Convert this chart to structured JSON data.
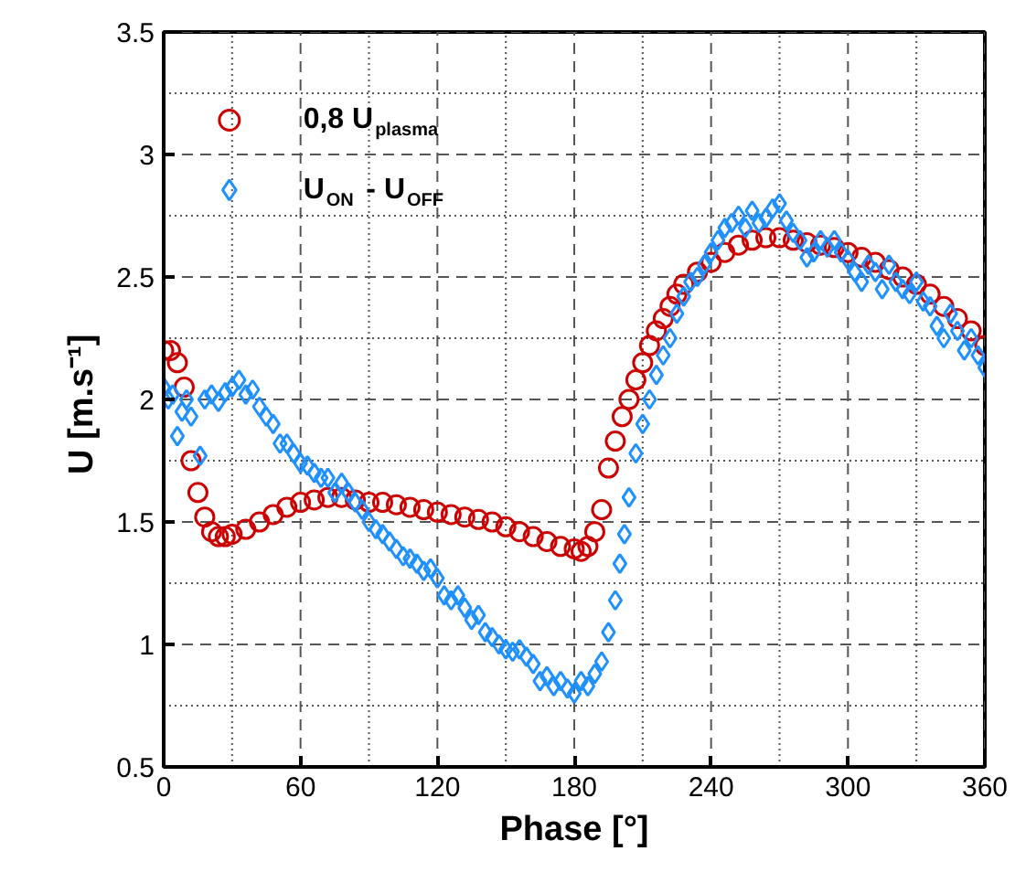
{
  "chart_data": {
    "type": "scatter",
    "xlabel": "Phase [°]",
    "ylabel": "U  [m.s⁻¹]",
    "xlim": [
      0,
      360
    ],
    "ylim": [
      0.5,
      3.5
    ],
    "xticks": [
      0,
      {
        "value": 30,
        "label": null
      },
      60,
      {
        "value": 90,
        "label": null
      },
      120,
      {
        "value": 150,
        "label": null
      },
      180,
      {
        "value": 210,
        "label": null
      },
      240,
      {
        "value": 270,
        "label": null
      },
      300,
      {
        "value": 330,
        "label": null
      },
      360
    ],
    "yticks": [
      0.5,
      {
        "value": 0.75,
        "label": null
      },
      1,
      {
        "value": 1.25,
        "label": null
      },
      1.5,
      {
        "value": 1.75,
        "label": null
      },
      2,
      {
        "value": 2.25,
        "label": null
      },
      2.5,
      {
        "value": 2.75,
        "label": null
      },
      3,
      {
        "value": 3.25,
        "label": null
      },
      3.5
    ],
    "grid": true,
    "legend": "top left",
    "series": [
      {
        "name": "0,8 U$_{plasma}$",
        "color": "#cc0000",
        "marker": "circle",
        "x": [
          0,
          3,
          6,
          9,
          12,
          15,
          18,
          21,
          24,
          27,
          30,
          36,
          42,
          48,
          54,
          60,
          66,
          72,
          78,
          84,
          90,
          96,
          102,
          108,
          114,
          120,
          126,
          132,
          138,
          144,
          150,
          156,
          162,
          168,
          174,
          180,
          183,
          186,
          189,
          192,
          195,
          198,
          201,
          204,
          207,
          210,
          213,
          216,
          219,
          222,
          225,
          228,
          234,
          240,
          246,
          252,
          258,
          264,
          270,
          276,
          282,
          288,
          294,
          300,
          306,
          312,
          318,
          324,
          330,
          336,
          342,
          348,
          354,
          360
        ],
        "values": [
          2.2,
          2.2,
          2.15,
          2.05,
          1.75,
          1.62,
          1.52,
          1.46,
          1.44,
          1.44,
          1.45,
          1.47,
          1.5,
          1.53,
          1.56,
          1.58,
          1.59,
          1.6,
          1.6,
          1.59,
          1.58,
          1.58,
          1.57,
          1.56,
          1.55,
          1.54,
          1.53,
          1.52,
          1.51,
          1.5,
          1.48,
          1.46,
          1.44,
          1.42,
          1.4,
          1.39,
          1.38,
          1.4,
          1.46,
          1.55,
          1.72,
          1.83,
          1.93,
          2.0,
          2.08,
          2.15,
          2.22,
          2.28,
          2.33,
          2.38,
          2.43,
          2.47,
          2.52,
          2.56,
          2.6,
          2.63,
          2.65,
          2.66,
          2.66,
          2.65,
          2.64,
          2.63,
          2.62,
          2.6,
          2.58,
          2.56,
          2.53,
          2.5,
          2.47,
          2.43,
          2.38,
          2.33,
          2.28,
          2.22
        ]
      },
      {
        "name": "U$_{ON}$ - U$_{OFF}$",
        "color": "#1e90ff",
        "marker": "diamond",
        "x": [
          0,
          2,
          4,
          6,
          8,
          10,
          12,
          16,
          18,
          21,
          24,
          27,
          30,
          33,
          36,
          39,
          42,
          45,
          48,
          51,
          54,
          57,
          60,
          63,
          66,
          69,
          72,
          75,
          78,
          81,
          84,
          87,
          90,
          93,
          96,
          99,
          102,
          105,
          108,
          111,
          114,
          117,
          120,
          123,
          126,
          129,
          132,
          135,
          138,
          141,
          144,
          147,
          150,
          153,
          156,
          159,
          162,
          165,
          168,
          171,
          174,
          177,
          180,
          183,
          186,
          189,
          192,
          195,
          198,
          200,
          202,
          204,
          207,
          210,
          213,
          216,
          219,
          222,
          225,
          228,
          231,
          234,
          237,
          240,
          243,
          246,
          249,
          252,
          255,
          258,
          261,
          264,
          267,
          270,
          273,
          276,
          279,
          282,
          285,
          288,
          291,
          294,
          297,
          300,
          303,
          306,
          309,
          312,
          315,
          318,
          321,
          324,
          327,
          330,
          333,
          336,
          339,
          342,
          345,
          348,
          351,
          354,
          357,
          360
        ],
        "values": [
          2.05,
          2.0,
          2.02,
          1.85,
          1.95,
          2.0,
          1.93,
          1.77,
          2.0,
          2.02,
          1.99,
          2.03,
          2.05,
          2.08,
          2.02,
          2.04,
          1.97,
          1.93,
          1.9,
          1.82,
          1.82,
          1.78,
          1.74,
          1.73,
          1.7,
          1.68,
          1.68,
          1.62,
          1.66,
          1.62,
          1.58,
          1.55,
          1.5,
          1.47,
          1.45,
          1.42,
          1.39,
          1.36,
          1.35,
          1.33,
          1.3,
          1.31,
          1.27,
          1.2,
          1.18,
          1.2,
          1.15,
          1.1,
          1.12,
          1.05,
          1.03,
          1.0,
          0.98,
          0.97,
          0.98,
          0.95,
          0.92,
          0.85,
          0.87,
          0.83,
          0.85,
          0.82,
          0.8,
          0.85,
          0.83,
          0.88,
          0.93,
          1.05,
          1.18,
          1.33,
          1.45,
          1.6,
          1.78,
          1.9,
          2.0,
          2.1,
          2.18,
          2.25,
          2.35,
          2.42,
          2.48,
          2.5,
          2.55,
          2.6,
          2.65,
          2.7,
          2.72,
          2.75,
          2.7,
          2.77,
          2.72,
          2.74,
          2.78,
          2.8,
          2.73,
          2.68,
          2.65,
          2.58,
          2.6,
          2.65,
          2.62,
          2.65,
          2.6,
          2.57,
          2.52,
          2.48,
          2.55,
          2.52,
          2.45,
          2.55,
          2.48,
          2.45,
          2.43,
          2.48,
          2.4,
          2.38,
          2.3,
          2.25,
          2.35,
          2.28,
          2.2,
          2.25,
          2.18,
          2.13
        ]
      }
    ]
  }
}
